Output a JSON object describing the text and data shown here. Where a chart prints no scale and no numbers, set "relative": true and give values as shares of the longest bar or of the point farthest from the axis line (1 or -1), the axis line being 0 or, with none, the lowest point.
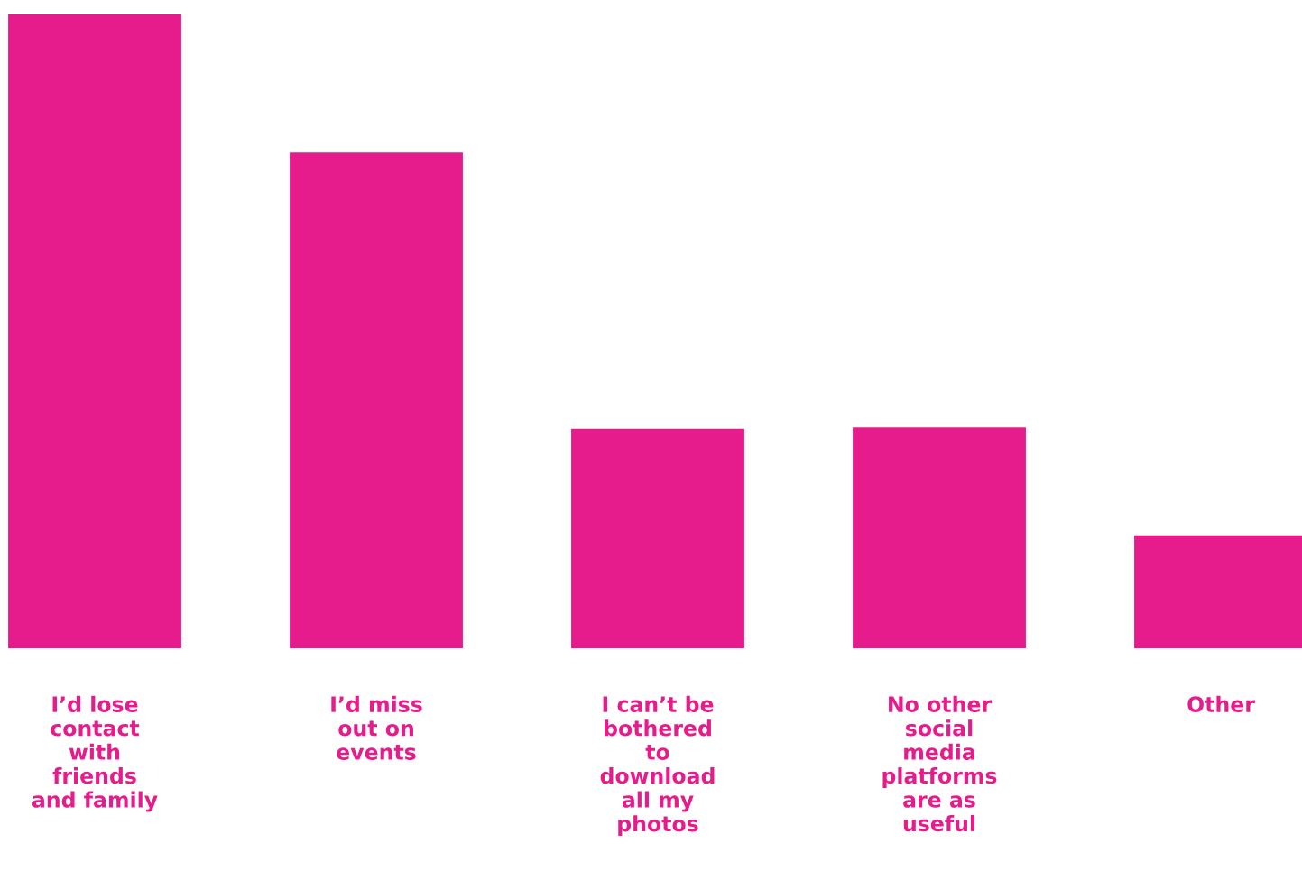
{
  "chart_data": {
    "type": "bar",
    "relative": true,
    "color": "#e61b8c",
    "categories": [
      "I’d lose\ncontact\nwith\nfriends\nand family",
      "I’d miss\nout on\nevents",
      "I can’t be\nbothered\nto\ndownload\nall my\nphotos",
      "No other\nsocial\nmedia\nplatforms\nare as\nuseful",
      "Other"
    ],
    "values": [
      1,
      0.782,
      0.346,
      0.348,
      0.178
    ],
    "grid": false,
    "legend": false
  }
}
